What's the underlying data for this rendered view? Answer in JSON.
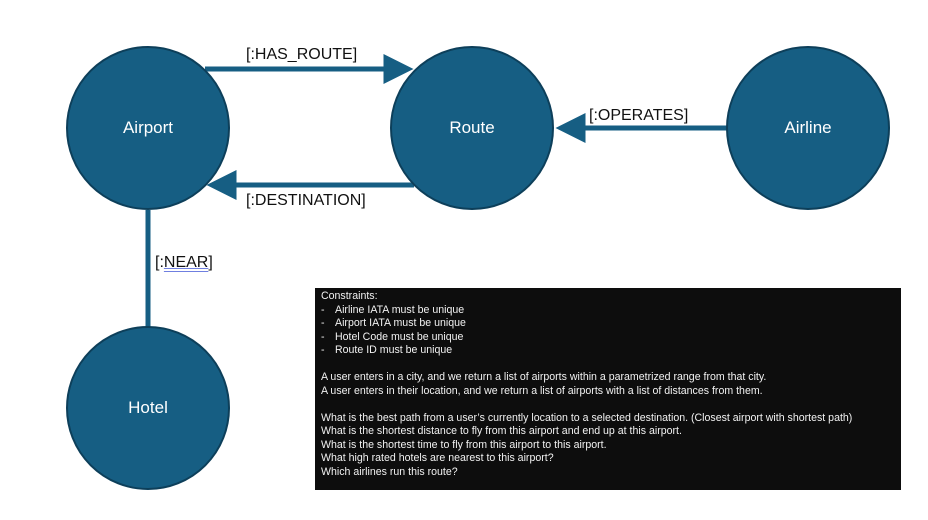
{
  "nodes": {
    "airport": "Airport",
    "route": "Route",
    "airline": "Airline",
    "hotel": "Hotel"
  },
  "edges": {
    "has_route": "[:HAS_ROUTE]",
    "destination": "[:DESTINATION]",
    "operates": "[:OPERATES]",
    "near_prefix": "[:",
    "near_word": "NEAR",
    "near_suffix": "]"
  },
  "colors": {
    "node_fill": "#165e83",
    "edge_stroke": "#165e83",
    "notes_background": "#0d0d0d"
  },
  "notes": {
    "heading": "Constraints:",
    "constraints": [
      "Airline IATA must be unique",
      "Airport IATA must be unique",
      "Hotel Code must be unique",
      "Route ID must be unique"
    ],
    "bullet": "-",
    "scenarios": [
      "A user enters in a city, and we return a list of airports within a parametrized range from that city.",
      "A user enters in their location, and we return a list of airports with a list of distances from them."
    ],
    "questions": [
      "What is the best path from a user’s currently location to a selected destination. (Closest airport with shortest path)",
      "What is the shortest distance to fly from this airport and end up at this airport.",
      "What is the shortest time to fly from this airport to this airport.",
      "What high rated hotels are nearest to this airport?",
      "Which airlines run this route?"
    ]
  }
}
